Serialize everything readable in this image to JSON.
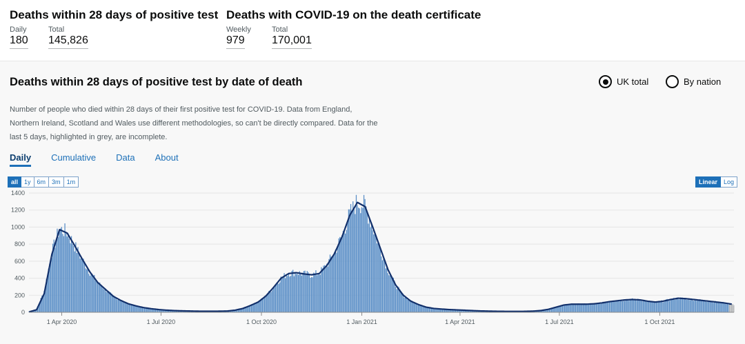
{
  "headlines": {
    "left": {
      "title": "Deaths within 28 days of positive test",
      "metrics": [
        {
          "label": "Daily",
          "value": "180"
        },
        {
          "label": "Total",
          "value": "145,826"
        }
      ]
    },
    "right": {
      "title": "Deaths with COVID-19 on the death certificate",
      "metrics": [
        {
          "label": "Weekly",
          "value": "979"
        },
        {
          "label": "Total",
          "value": "170,001"
        }
      ]
    }
  },
  "card": {
    "title": "Deaths within 28 days of positive test by date of death",
    "radios": [
      {
        "label": "UK total",
        "checked": true
      },
      {
        "label": "By nation",
        "checked": false
      }
    ],
    "description": "Number of people who died within 28 days of their first positive test for COVID-19. Data from England, Northern Ireland, Scotland and Wales use different methodologies, so can't be directly compared. Data for the last 5 days, highlighted in grey, are incomplete.",
    "tabs": [
      {
        "label": "Daily",
        "active": true
      },
      {
        "label": "Cumulative",
        "active": false
      },
      {
        "label": "Data",
        "active": false
      },
      {
        "label": "About",
        "active": false
      }
    ],
    "range_buttons": [
      {
        "label": "all",
        "active": true
      },
      {
        "label": "1y",
        "active": false
      },
      {
        "label": "6m",
        "active": false
      },
      {
        "label": "3m",
        "active": false
      },
      {
        "label": "1m",
        "active": false
      }
    ],
    "scale_buttons": [
      {
        "label": "Linear",
        "active": true
      },
      {
        "label": "Log",
        "active": false
      }
    ]
  },
  "chart_data": {
    "type": "bar",
    "title": "",
    "xlabel": "",
    "ylabel": "",
    "ylim": [
      0,
      1400
    ],
    "yticks": [
      0,
      200,
      400,
      600,
      800,
      1000,
      1200,
      1400
    ],
    "xtick_labels": [
      "1 Apr 2020",
      "1 Jul 2020",
      "1 Oct 2020",
      "1 Jan 2021",
      "1 Apr 2021",
      "1 Jul 2021",
      "1 Oct 2021"
    ],
    "xtick_dates": [
      "2020-04-01",
      "2020-07-01",
      "2020-10-01",
      "2021-01-01",
      "2021-04-01",
      "2021-07-01",
      "2021-10-01"
    ],
    "x_range": [
      "2020-03-02",
      "2021-12-08"
    ],
    "incomplete_last_days": 5,
    "colors": {
      "bars": "#5b8fc7",
      "average_line": "#12306b",
      "incomplete": "#b1b4b6",
      "grid": "#e5e5e5"
    },
    "series": [
      {
        "name": "Daily deaths",
        "x": [
          "2020-03-02",
          "2020-03-09",
          "2020-03-16",
          "2020-03-23",
          "2020-03-30",
          "2020-04-06",
          "2020-04-13",
          "2020-04-20",
          "2020-04-27",
          "2020-05-04",
          "2020-05-11",
          "2020-05-18",
          "2020-05-25",
          "2020-06-01",
          "2020-06-08",
          "2020-06-15",
          "2020-06-22",
          "2020-06-29",
          "2020-07-06",
          "2020-07-13",
          "2020-07-20",
          "2020-07-27",
          "2020-08-03",
          "2020-08-10",
          "2020-08-17",
          "2020-08-24",
          "2020-08-31",
          "2020-09-07",
          "2020-09-14",
          "2020-09-21",
          "2020-09-28",
          "2020-10-05",
          "2020-10-12",
          "2020-10-19",
          "2020-10-26",
          "2020-11-02",
          "2020-11-09",
          "2020-11-16",
          "2020-11-23",
          "2020-11-30",
          "2020-12-07",
          "2020-12-14",
          "2020-12-21",
          "2020-12-28",
          "2021-01-04",
          "2021-01-11",
          "2021-01-18",
          "2021-01-25",
          "2021-02-01",
          "2021-02-08",
          "2021-02-15",
          "2021-02-22",
          "2021-03-01",
          "2021-03-08",
          "2021-03-15",
          "2021-03-22",
          "2021-03-29",
          "2021-04-05",
          "2021-04-12",
          "2021-04-19",
          "2021-04-26",
          "2021-05-03",
          "2021-05-10",
          "2021-05-17",
          "2021-05-24",
          "2021-05-31",
          "2021-06-07",
          "2021-06-14",
          "2021-06-21",
          "2021-06-28",
          "2021-07-05",
          "2021-07-12",
          "2021-07-19",
          "2021-07-26",
          "2021-08-02",
          "2021-08-09",
          "2021-08-16",
          "2021-08-23",
          "2021-08-30",
          "2021-09-06",
          "2021-09-13",
          "2021-09-20",
          "2021-09-27",
          "2021-10-04",
          "2021-10-11",
          "2021-10-18",
          "2021-10-25",
          "2021-11-01",
          "2021-11-08",
          "2021-11-15",
          "2021-11-22",
          "2021-11-29",
          "2021-12-06"
        ],
        "values": [
          5,
          40,
          250,
          700,
          980,
          940,
          780,
          620,
          470,
          350,
          270,
          190,
          140,
          100,
          75,
          55,
          42,
          32,
          25,
          20,
          17,
          15,
          13,
          12,
          12,
          13,
          15,
          25,
          45,
          80,
          120,
          190,
          290,
          400,
          460,
          470,
          450,
          440,
          460,
          560,
          700,
          900,
          1150,
          1300,
          1250,
          1000,
          750,
          500,
          320,
          200,
          130,
          90,
          60,
          45,
          38,
          32,
          28,
          24,
          20,
          16,
          14,
          12,
          11,
          10,
          10,
          11,
          14,
          20,
          35,
          60,
          85,
          95,
          95,
          95,
          100,
          110,
          125,
          135,
          145,
          150,
          145,
          130,
          120,
          130,
          150,
          165,
          160,
          150,
          140,
          130,
          120,
          110,
          90
        ]
      },
      {
        "name": "7-day average",
        "x": [
          "2020-03-02",
          "2020-03-09",
          "2020-03-16",
          "2020-03-23",
          "2020-03-30",
          "2020-04-06",
          "2020-04-13",
          "2020-04-20",
          "2020-04-27",
          "2020-05-04",
          "2020-05-11",
          "2020-05-18",
          "2020-05-25",
          "2020-06-01",
          "2020-06-08",
          "2020-06-15",
          "2020-06-22",
          "2020-06-29",
          "2020-07-06",
          "2020-07-13",
          "2020-07-20",
          "2020-07-27",
          "2020-08-03",
          "2020-08-10",
          "2020-08-17",
          "2020-08-24",
          "2020-08-31",
          "2020-09-07",
          "2020-09-14",
          "2020-09-21",
          "2020-09-28",
          "2020-10-05",
          "2020-10-12",
          "2020-10-19",
          "2020-10-26",
          "2020-11-02",
          "2020-11-09",
          "2020-11-16",
          "2020-11-23",
          "2020-11-30",
          "2020-12-07",
          "2020-12-14",
          "2020-12-21",
          "2020-12-28",
          "2021-01-04",
          "2021-01-11",
          "2021-01-18",
          "2021-01-25",
          "2021-02-01",
          "2021-02-08",
          "2021-02-15",
          "2021-02-22",
          "2021-03-01",
          "2021-03-08",
          "2021-03-15",
          "2021-03-22",
          "2021-03-29",
          "2021-04-05",
          "2021-04-12",
          "2021-04-19",
          "2021-04-26",
          "2021-05-03",
          "2021-05-10",
          "2021-05-17",
          "2021-05-24",
          "2021-05-31",
          "2021-06-07",
          "2021-06-14",
          "2021-06-21",
          "2021-06-28",
          "2021-07-05",
          "2021-07-12",
          "2021-07-19",
          "2021-07-26",
          "2021-08-02",
          "2021-08-09",
          "2021-08-16",
          "2021-08-23",
          "2021-08-30",
          "2021-09-06",
          "2021-09-13",
          "2021-09-20",
          "2021-09-27",
          "2021-10-04",
          "2021-10-11",
          "2021-10-18",
          "2021-10-25",
          "2021-11-01",
          "2021-11-08",
          "2021-11-15",
          "2021-11-22",
          "2021-11-29",
          "2021-12-06"
        ],
        "values": [
          4,
          30,
          220,
          680,
          970,
          930,
          780,
          620,
          470,
          350,
          270,
          190,
          140,
          100,
          75,
          55,
          42,
          32,
          25,
          20,
          17,
          15,
          13,
          12,
          12,
          13,
          15,
          25,
          45,
          80,
          120,
          190,
          290,
          400,
          455,
          465,
          450,
          440,
          455,
          550,
          690,
          890,
          1140,
          1290,
          1240,
          1000,
          750,
          500,
          320,
          200,
          130,
          90,
          60,
          45,
          38,
          32,
          28,
          24,
          20,
          16,
          14,
          12,
          11,
          10,
          10,
          11,
          14,
          20,
          35,
          60,
          85,
          95,
          95,
          95,
          100,
          110,
          125,
          135,
          145,
          150,
          145,
          130,
          120,
          130,
          150,
          165,
          160,
          150,
          140,
          130,
          120,
          110,
          95
        ]
      }
    ]
  }
}
